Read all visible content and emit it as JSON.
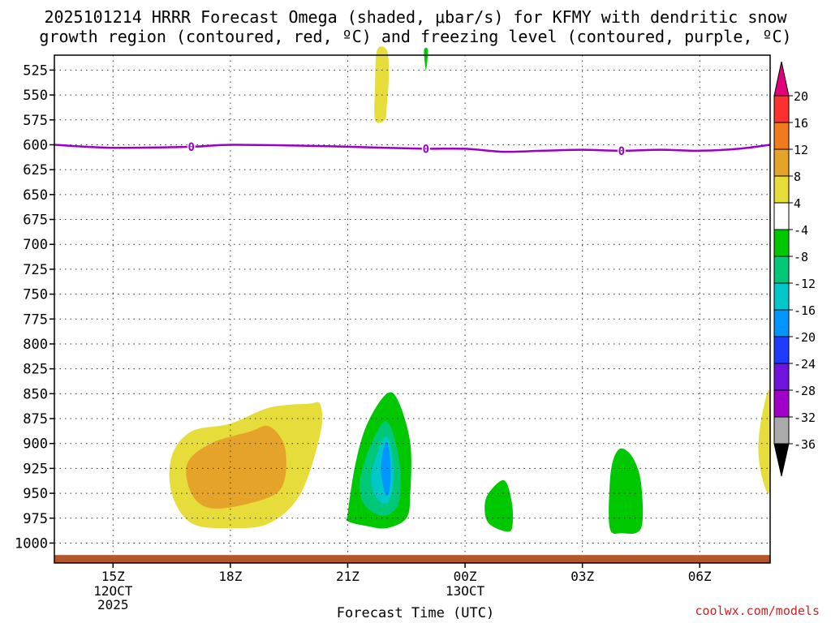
{
  "title_line1": "2025101214 HRRR Forecast Omega (shaded, μbar/s) for KFMY with dendritic snow",
  "title_line2": "growth region (contoured, red, ºC) and freezing level (contoured, purple, ºC)",
  "credit": "coolwx.com/models",
  "chart_data": {
    "type": "time-height cross section",
    "xlabel": "Forecast Time (UTC)",
    "ylabel": "",
    "y_axis": {
      "units": "hPa",
      "range": [
        1020,
        510
      ],
      "ticks": [
        525,
        550,
        575,
        600,
        625,
        650,
        675,
        700,
        725,
        750,
        775,
        800,
        825,
        850,
        875,
        900,
        925,
        950,
        975,
        1000
      ]
    },
    "x_axis": {
      "range_hours": [
        -1.5,
        16.8
      ],
      "ticks": [
        {
          "hour": 0,
          "label": "15Z",
          "sub": [
            "12OCT",
            "2025"
          ]
        },
        {
          "hour": 3,
          "label": "18Z",
          "sub": []
        },
        {
          "hour": 6,
          "label": "21Z",
          "sub": []
        },
        {
          "hour": 9,
          "label": "00Z",
          "sub": [
            "13OCT"
          ]
        },
        {
          "hour": 12,
          "label": "03Z",
          "sub": []
        },
        {
          "hour": 15,
          "label": "06Z",
          "sub": []
        }
      ]
    },
    "grid": true,
    "colorbar": {
      "labels": [
        "20",
        "16",
        "12",
        "8",
        "4",
        "-4",
        "-8",
        "-12",
        "-16",
        "-20",
        "-24",
        "-28",
        "-32",
        "-36"
      ],
      "colors": [
        "#ff3030",
        "#f07a1e",
        "#e6a32a",
        "#e6dc3a",
        "#ffffff",
        "#00c800",
        "#00c878",
        "#00c8c8",
        "#0096ff",
        "#1e3cff",
        "#6e14dc",
        "#a000c8",
        "#aaaaaa"
      ],
      "top_arrow": "#e0007a",
      "bottom_arrow": "#000000"
    },
    "freezing_level": {
      "color": "#9c00c8",
      "label": "0",
      "label_hours": [
        2.0,
        8.0,
        13.0
      ],
      "points": [
        [
          -1.5,
          600
        ],
        [
          0,
          603
        ],
        [
          2,
          602
        ],
        [
          3,
          600
        ],
        [
          5,
          601
        ],
        [
          7,
          603
        ],
        [
          8,
          604
        ],
        [
          9,
          604
        ],
        [
          10,
          607
        ],
        [
          11,
          606
        ],
        [
          12,
          605
        ],
        [
          13,
          606
        ],
        [
          14,
          605
        ],
        [
          15,
          606
        ],
        [
          16,
          604
        ],
        [
          16.8,
          600
        ]
      ]
    },
    "omega_regions": [
      {
        "value_class": "4 to 8",
        "color": "#e6dc3a",
        "points": [
          [
            1.5,
            913
          ],
          [
            2.0,
            888
          ],
          [
            3.0,
            880
          ],
          [
            4.0,
            864
          ],
          [
            5.0,
            860
          ],
          [
            5.3,
            861
          ],
          [
            5.3,
            890
          ],
          [
            4.8,
            950
          ],
          [
            4.0,
            980
          ],
          [
            3.0,
            985
          ],
          [
            2.0,
            980
          ],
          [
            1.5,
            950
          ]
        ]
      },
      {
        "value_class": "8 to 12",
        "color": "#e6a32a",
        "points": [
          [
            1.9,
            920
          ],
          [
            2.5,
            900
          ],
          [
            3.5,
            888
          ],
          [
            4.0,
            883
          ],
          [
            4.4,
            905
          ],
          [
            4.3,
            945
          ],
          [
            3.5,
            960
          ],
          [
            2.5,
            965
          ],
          [
            2.0,
            950
          ]
        ]
      },
      {
        "value_class": "-4 to -8",
        "color": "#00c800",
        "points": [
          [
            6.0,
            970
          ],
          [
            6.2,
            920
          ],
          [
            6.5,
            880
          ],
          [
            7.0,
            850
          ],
          [
            7.3,
            858
          ],
          [
            7.6,
            900
          ],
          [
            7.6,
            950
          ],
          [
            7.5,
            975
          ],
          [
            7.0,
            985
          ],
          [
            6.5,
            983
          ],
          [
            6.0,
            978
          ]
        ]
      },
      {
        "value_class": "-8 to -12",
        "color": "#00c878",
        "points": [
          [
            6.3,
            940
          ],
          [
            6.5,
            910
          ],
          [
            6.8,
            885
          ],
          [
            7.0,
            878
          ],
          [
            7.2,
            895
          ],
          [
            7.35,
            930
          ],
          [
            7.3,
            960
          ],
          [
            7.0,
            972
          ],
          [
            6.7,
            970
          ],
          [
            6.4,
            960
          ]
        ]
      },
      {
        "value_class": "-12 to -16",
        "color": "#00c8c8",
        "points": [
          [
            6.6,
            935
          ],
          [
            6.8,
            905
          ],
          [
            7.0,
            893
          ],
          [
            7.15,
            915
          ],
          [
            7.15,
            945
          ],
          [
            7.0,
            960
          ],
          [
            6.75,
            955
          ]
        ]
      },
      {
        "value_class": "-16 to -20",
        "color": "#0096ff",
        "points": [
          [
            6.85,
            925
          ],
          [
            6.95,
            900
          ],
          [
            7.05,
            905
          ],
          [
            7.1,
            930
          ],
          [
            7.05,
            950
          ],
          [
            6.95,
            950
          ]
        ]
      },
      {
        "value_class": "4 to 8",
        "color": "#e6dc3a",
        "points": [
          [
            6.7,
            575
          ],
          [
            6.7,
            540
          ],
          [
            6.75,
            505
          ],
          [
            7.0,
            505
          ],
          [
            7.05,
            530
          ],
          [
            7.0,
            560
          ],
          [
            6.95,
            575
          ]
        ]
      },
      {
        "value_class": "-4 to -8",
        "color": "#00c800",
        "points": [
          [
            7.95,
            505
          ],
          [
            8.05,
            505
          ],
          [
            8.0,
            525
          ]
        ]
      },
      {
        "value_class": "-4 to -8",
        "color": "#00c800",
        "points": [
          [
            9.5,
            965
          ],
          [
            9.6,
            950
          ],
          [
            10.0,
            937
          ],
          [
            10.2,
            960
          ],
          [
            10.2,
            985
          ],
          [
            10.0,
            988
          ],
          [
            9.6,
            980
          ]
        ]
      },
      {
        "value_class": "-4 to -8",
        "color": "#00c800",
        "points": [
          [
            12.7,
            940
          ],
          [
            12.8,
            915
          ],
          [
            13.0,
            905
          ],
          [
            13.3,
            915
          ],
          [
            13.5,
            940
          ],
          [
            13.5,
            985
          ],
          [
            13.0,
            990
          ],
          [
            12.7,
            985
          ]
        ]
      },
      {
        "value_class": "4 to 8",
        "color": "#e6dc3a",
        "points": [
          [
            16.8,
            850
          ],
          [
            16.6,
            870
          ],
          [
            16.5,
            905
          ],
          [
            16.6,
            935
          ],
          [
            16.8,
            945
          ]
        ]
      }
    ],
    "surface": {
      "color": "#b4562a",
      "pressure": 1012
    }
  }
}
